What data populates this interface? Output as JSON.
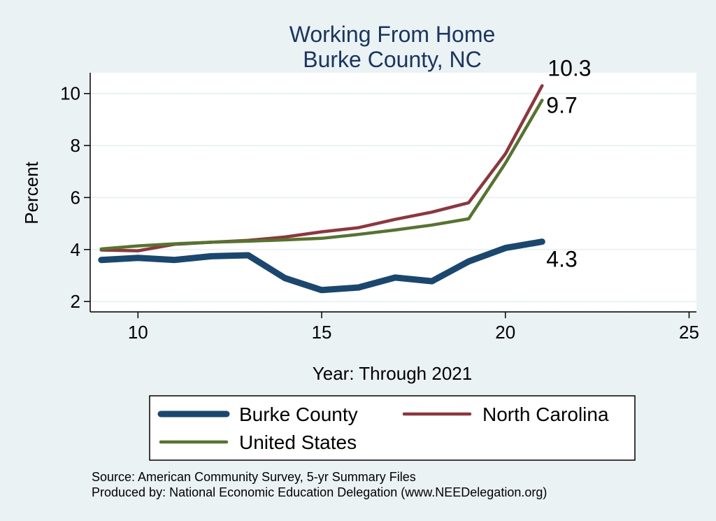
{
  "chart_data": {
    "type": "line",
    "title": [
      "Working From Home",
      "Burke County, NC"
    ],
    "xlabel": "Year: Through 2021",
    "ylabel": "Percent",
    "xlim": [
      8.7,
      25.2
    ],
    "ylim": [
      1.6,
      10.8
    ],
    "xticks": [
      10,
      15,
      20,
      25
    ],
    "yticks": [
      2,
      4,
      6,
      8,
      10
    ],
    "grid": true,
    "legend_position": "bottom",
    "series": [
      {
        "name": "Burke County",
        "color": "#1a476f",
        "end_label": "4.3",
        "x": [
          9,
          10,
          11,
          12,
          13,
          14,
          15,
          16,
          17,
          18,
          19,
          20,
          21
        ],
        "y": [
          3.6,
          3.68,
          3.6,
          3.74,
          3.78,
          2.9,
          2.44,
          2.54,
          2.92,
          2.78,
          3.54,
          4.06,
          4.3
        ]
      },
      {
        "name": "North Carolina",
        "color": "#90353b",
        "end_label": "10.3",
        "x": [
          9,
          10,
          11,
          12,
          13,
          14,
          15,
          16,
          17,
          18,
          19,
          20,
          21
        ],
        "y": [
          3.98,
          3.95,
          4.2,
          4.28,
          4.35,
          4.48,
          4.68,
          4.84,
          5.16,
          5.44,
          5.8,
          7.68,
          10.3
        ]
      },
      {
        "name": "United States",
        "color": "#55752f",
        "end_label": "9.7",
        "x": [
          9,
          10,
          11,
          12,
          13,
          14,
          15,
          16,
          17,
          18,
          19,
          20,
          21
        ],
        "y": [
          4.02,
          4.14,
          4.22,
          4.28,
          4.32,
          4.37,
          4.43,
          4.58,
          4.75,
          4.94,
          5.18,
          7.32,
          9.74
        ]
      }
    ]
  },
  "footer": {
    "source": "Source: American Community Survey, 5-yr Summary Files",
    "produced": "Produced by: National Economic Education Delegation (www.NEEDelegation.org)"
  }
}
